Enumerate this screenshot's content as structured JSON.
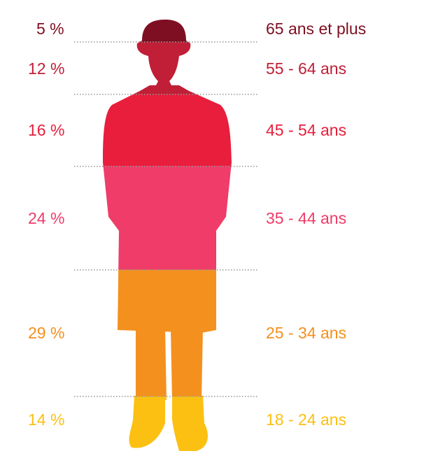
{
  "chart_data": {
    "type": "bar",
    "orientation": "stacked-vertical",
    "title": "",
    "categories": [
      "65 ans et plus",
      "55 - 64 ans",
      "45 - 54 ans",
      "35 - 44 ans",
      "25 - 34 ans",
      "18 - 24 ans"
    ],
    "values": [
      5,
      12,
      16,
      24,
      29,
      14
    ],
    "value_labels": [
      "5 %",
      "12 %",
      "16 %",
      "24 %",
      "29 %",
      "14 %"
    ],
    "colors": [
      "#7e0f22",
      "#c01f37",
      "#e81e3c",
      "#ef3c69",
      "#f4901e",
      "#fcc013"
    ],
    "grid": "dotted separators between segments",
    "legend": "none"
  }
}
